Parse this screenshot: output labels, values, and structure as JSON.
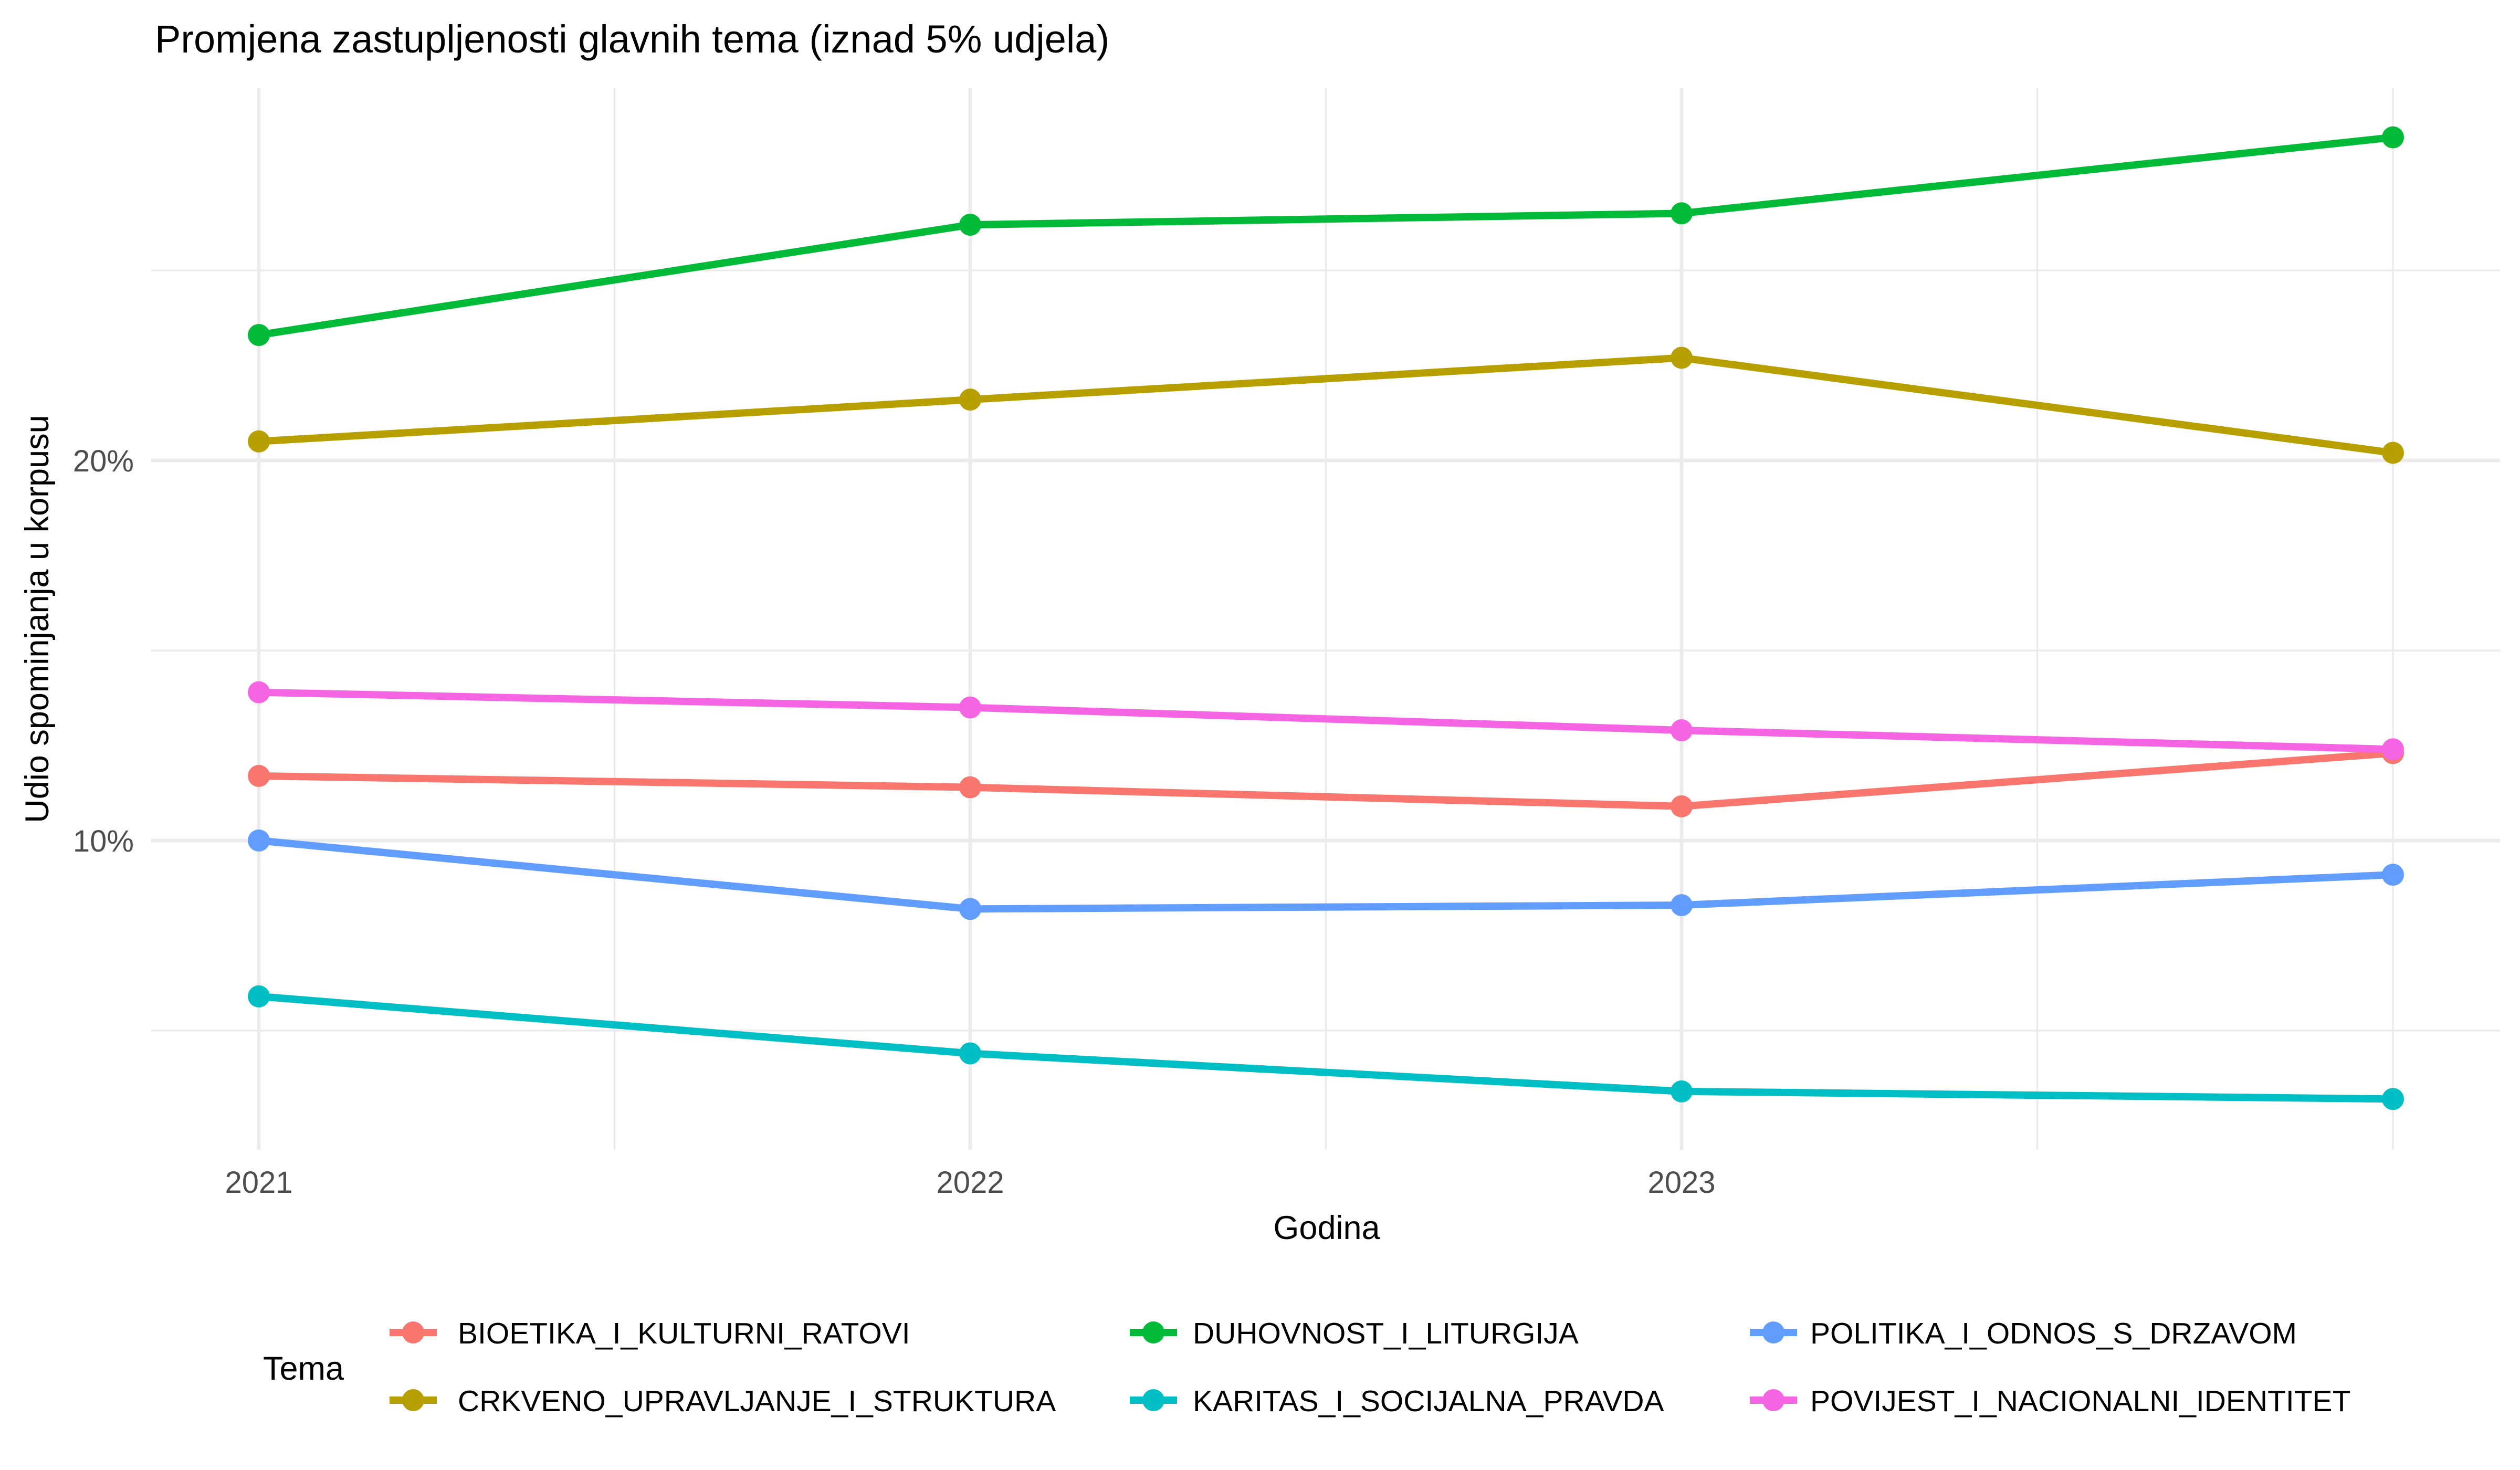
{
  "title": "Promjena zastupljenosti glavnih tema (iznad 5% udjela)",
  "axes": {
    "x": {
      "label": "Godina",
      "ticks": [
        "2021",
        "2022",
        "2023"
      ]
    },
    "y": {
      "label": "Udio spominjanja u korpusu",
      "ticks": [
        "10%",
        "20%"
      ]
    }
  },
  "legend": {
    "title": "Tema",
    "items": [
      "BIOETIKA_I_KULTURNI_RATOVI",
      "CRKVENO_UPRAVLJANJE_I_STRUKTURA",
      "DUHOVNOST_I_LITURGIJA",
      "KARITAS_I_SOCIJALNA_PRAVDA",
      "POLITIKA_I_ODNOS_S_DRZAVOM",
      "POVIJEST_I_NACIONALNI_IDENTITET"
    ]
  },
  "style_colors": {
    "grid": "#EBEBEB",
    "tick_text": "#4D4D4D",
    "text": "#000000",
    "background": "#FFFFFF"
  },
  "chart_data": {
    "type": "line",
    "title": "Promjena zastupljenosti glavnih tema (iznad 5% udjela)",
    "xlabel": "Godina",
    "ylabel": "Udio spominjanja u korpusu",
    "x": [
      2021,
      2022,
      2023,
      2024
    ],
    "x_tick_labels_shown": [
      "2021",
      "2022",
      "2023"
    ],
    "y_tick_labels_shown": [
      "10%",
      "20%"
    ],
    "y_major_gridlines": [
      10,
      20
    ],
    "y_minor_gridlines": [
      5,
      15,
      25
    ],
    "xlim": [
      2020.85,
      2024.15
    ],
    "ylim": [
      1.9,
      29.8
    ],
    "grid": true,
    "legend_position": "bottom",
    "legend_title": "Tema",
    "units": "percent",
    "series": [
      {
        "name": "BIOETIKA_I_KULTURNI_RATOVI",
        "color": "#F8766D",
        "values": [
          11.7,
          11.4,
          10.9,
          12.3
        ]
      },
      {
        "name": "CRKVENO_UPRAVLJANJE_I_STRUKTURA",
        "color": "#B79F00",
        "values": [
          20.5,
          21.6,
          22.7,
          20.2
        ]
      },
      {
        "name": "DUHOVNOST_I_LITURGIJA",
        "color": "#00BA38",
        "values": [
          23.3,
          26.2,
          26.5,
          28.5
        ]
      },
      {
        "name": "KARITAS_I_SOCIJALNA_PRAVDA",
        "color": "#00BFC4",
        "values": [
          5.9,
          4.4,
          3.4,
          3.2
        ]
      },
      {
        "name": "POLITIKA_I_ODNOS_S_DRZAVOM",
        "color": "#619CFF",
        "values": [
          10.0,
          8.2,
          8.3,
          9.1
        ]
      },
      {
        "name": "POVIJEST_I_NACIONALNI_IDENTITET",
        "color": "#F564E3",
        "values": [
          13.9,
          13.5,
          12.9,
          12.4
        ]
      }
    ]
  }
}
